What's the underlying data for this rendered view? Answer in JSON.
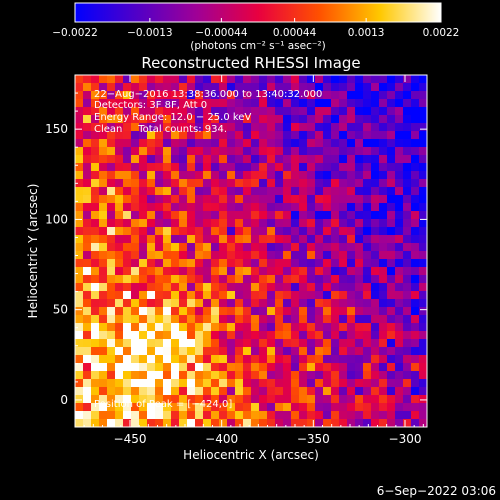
{
  "chart_data": {
    "type": "heatmap",
    "title": "Reconstructed RHESSI Image",
    "xlabel": "Heliocentric X (arcsec)",
    "ylabel": "Heliocentric Y (arcsec)",
    "xlim": [
      -480,
      -288
    ],
    "ylim": [
      -15,
      180
    ],
    "x_ticks": [
      -450,
      -400,
      -350,
      -300
    ],
    "y_ticks": [
      0,
      50,
      100,
      150
    ],
    "x_tick_labels": [
      "−450",
      "−400",
      "−350",
      "−300"
    ],
    "y_tick_labels": [
      "0",
      "50",
      "100",
      "150"
    ],
    "colorbar": {
      "range": [
        -0.0022,
        0.0022
      ],
      "ticks": [
        -0.0022,
        -0.0013,
        -0.00044,
        0.00044,
        0.0013,
        0.0022
      ],
      "tick_labels": [
        "−0.0022",
        "−0.0013",
        "−0.00044",
        "0.00044",
        "0.0013",
        "0.0022"
      ],
      "unit": "(photons cm⁻² s⁻¹ asec⁻²)",
      "colors": [
        "#0000ff",
        "#5000c8",
        "#a00096",
        "#e80040",
        "#ff5000",
        "#ffc800",
        "#ffffff"
      ]
    },
    "annotations": [
      "22−Aug−2016 13:38:36.000 to 13:40:32.000",
      "Detectors: 3F 8F, Att 0",
      "Energy Range: 12.0 − 25.0 keV",
      "Clean     Total counts: 934.",
      "Position of Peak = [−424,0]"
    ],
    "peak": {
      "x": -424,
      "y": 0
    },
    "footer": "6−Sep−2022 03:06"
  }
}
